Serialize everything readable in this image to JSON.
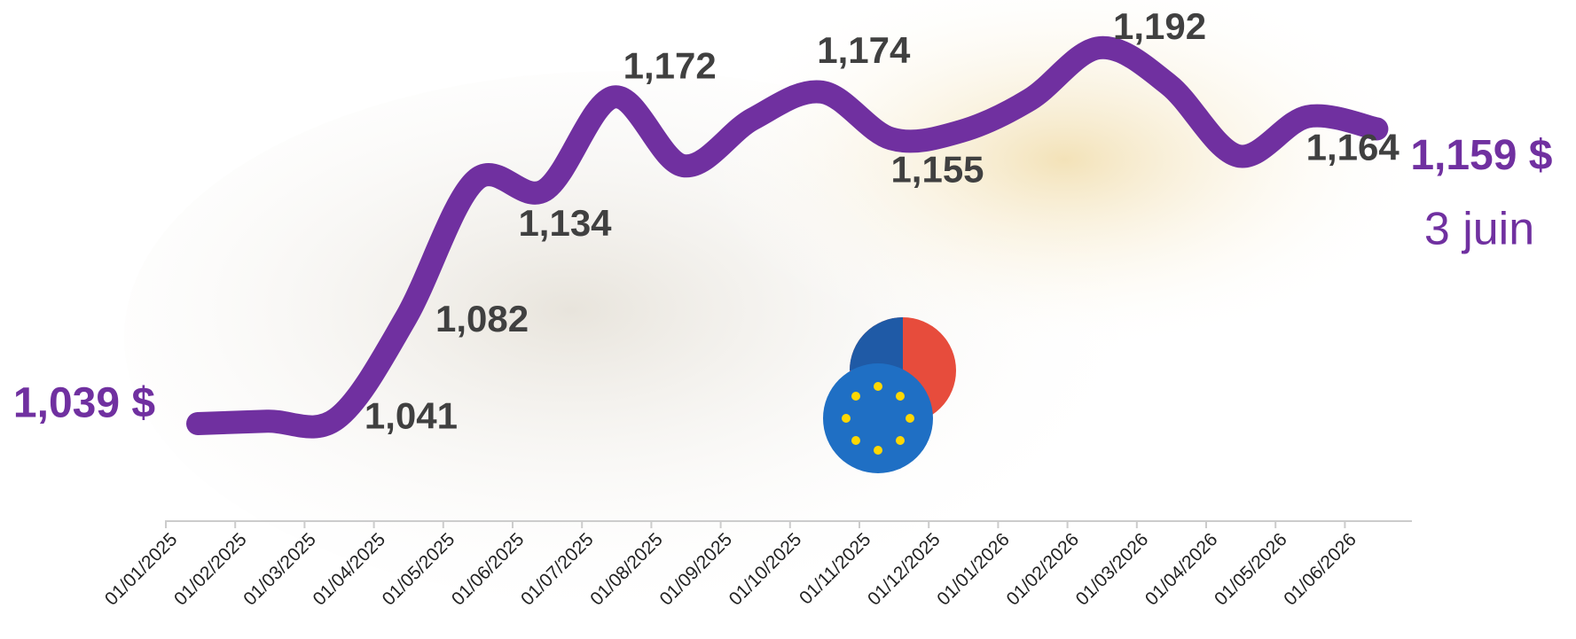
{
  "chart_data": {
    "type": "line",
    "categories": [
      "01/01/2025",
      "01/02/2025",
      "01/03/2025",
      "01/04/2025",
      "01/05/2025",
      "01/06/2025",
      "01/07/2025",
      "01/08/2025",
      "01/09/2025",
      "01/10/2025",
      "01/11/2025",
      "01/12/2025",
      "01/01/2026",
      "01/02/2026",
      "01/03/2026",
      "01/04/2026",
      "01/05/2026",
      "01/06/2026"
    ],
    "series": [
      {
        "color": "#7030a0",
        "values": [
          1.039,
          1.04,
          1.041,
          1.082,
          1.138,
          1.134,
          1.172,
          1.144,
          1.163,
          1.174,
          1.155,
          1.158,
          1.171,
          1.192,
          1.177,
          1.148,
          1.164,
          1.159
        ],
        "value_labels": [
          "1,039 $",
          null,
          "1,041",
          "1,082",
          null,
          "1,134",
          "1,172",
          null,
          null,
          "1,174",
          "1,155",
          null,
          null,
          "1,192",
          null,
          null,
          "1,164",
          "1,159 $"
        ]
      }
    ],
    "annotation": "3 juin"
  }
}
